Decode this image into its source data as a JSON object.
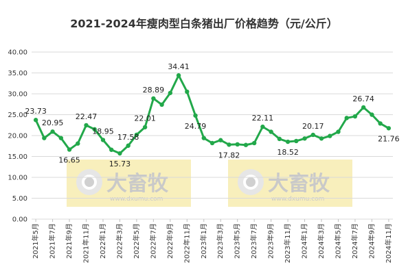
{
  "chart_data": {
    "type": "line",
    "title": "2021-2024年瘦肉型白条猪出厂价格趋势（元/公斤）",
    "ylim": [
      0,
      40
    ],
    "y_ticks": [
      "0.00",
      "5.00",
      "10.00",
      "15.00",
      "20.00",
      "25.00",
      "30.00",
      "35.00",
      "40.00"
    ],
    "grid": "horizontal",
    "categories": [
      "2021年5月",
      "2021年6月",
      "2021年7月",
      "2021年8月",
      "2021年9月",
      "2021年10月",
      "2021年11月",
      "2021年12月",
      "2022年1月",
      "2022年2月",
      "2022年3月",
      "2022年4月",
      "2022年5月",
      "2022年6月",
      "2022年7月",
      "2022年8月",
      "2022年9月",
      "2022年10月",
      "2022年11月",
      "2022年12月",
      "2023年1月",
      "2023年2月",
      "2023年3月",
      "2023年4月",
      "2023年5月",
      "2023年6月",
      "2023年7月",
      "2023年8月",
      "2023年9月",
      "2023年10月",
      "2023年11月",
      "2023年12月",
      "2024年1月",
      "2024年2月",
      "2024年3月",
      "2024年4月",
      "2024年5月",
      "2024年6月",
      "2024年7月",
      "2024年8月",
      "2024年9月",
      "2024年10月",
      "2024年11月"
    ],
    "tick_label_categories": [
      "2021年5月",
      "2021年7月",
      "2021年9月",
      "2021年11月",
      "2022年1月",
      "2022年3月",
      "2022年5月",
      "2022年7月",
      "2022年9月",
      "2022年11月",
      "2023年1月",
      "2023年3月",
      "2023年5月",
      "2023年7月",
      "2023年9月",
      "2023年11月",
      "2024年1月",
      "2024年3月",
      "2024年5月",
      "2024年7月",
      "2024年9月",
      "2024年11月"
    ],
    "values": [
      23.73,
      19.4,
      20.95,
      19.4,
      16.65,
      18.1,
      22.47,
      21.5,
      18.95,
      16.6,
      15.73,
      17.58,
      20.2,
      22.01,
      28.89,
      27.4,
      30.2,
      34.41,
      30.5,
      24.79,
      19.4,
      18.2,
      18.9,
      17.82,
      17.9,
      17.75,
      18.2,
      22.11,
      20.9,
      19.2,
      18.52,
      18.7,
      19.3,
      20.17,
      19.3,
      19.9,
      20.9,
      24.2,
      24.6,
      26.74,
      25.0,
      22.9,
      21.76
    ],
    "labeled_points": [
      {
        "category": "2021年5月",
        "text": "23.73"
      },
      {
        "category": "2021年7月",
        "text": "20.95"
      },
      {
        "category": "2021年9月",
        "text": "16.65"
      },
      {
        "category": "2021年11月",
        "text": "22.47"
      },
      {
        "category": "2022年1月",
        "text": "18.95"
      },
      {
        "category": "2022年3月",
        "text": "15.73"
      },
      {
        "category": "2022年4月",
        "text": "17.58"
      },
      {
        "category": "2022年6月",
        "text": "22.01"
      },
      {
        "category": "2022年7月",
        "text": "28.89"
      },
      {
        "category": "2022年10月",
        "text": "34.41"
      },
      {
        "category": "2022年12月",
        "text": "24.79"
      },
      {
        "category": "2023年4月",
        "text": "17.82"
      },
      {
        "category": "2023年8月",
        "text": "22.11"
      },
      {
        "category": "2023年11月",
        "text": "18.52"
      },
      {
        "category": "2024年2月",
        "text": "20.17"
      },
      {
        "category": "2024年8月",
        "text": "26.74"
      },
      {
        "category": "2024年11月",
        "text": "21.76"
      }
    ],
    "colors": {
      "line": "#22a84a",
      "marker": "#22a84a",
      "grid": "#d9d9d9",
      "watermark_bg": "#f5eaa6"
    }
  },
  "watermark": {
    "brand": "大畜牧",
    "url": "www.dxumu.com",
    "icon": "logo-circle-icon"
  }
}
